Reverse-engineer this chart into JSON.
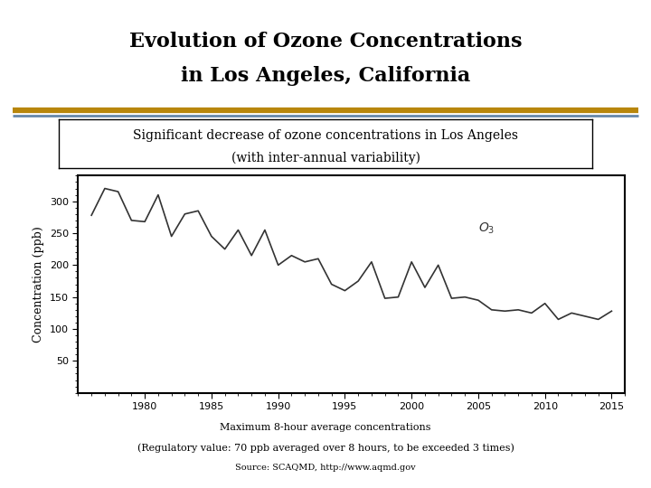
{
  "title_line1": "Evolution of Ozone Concentrations",
  "title_line2": "in Los Angeles, California",
  "subtitle_line1": "Significant decrease of ozone concentrations in Los Angeles",
  "subtitle_line2": "(with inter-annual variability)",
  "xlabel": "Maximum 8-hour average concentrations",
  "xlabel2": "(Regulatory value: 70 ppb averaged over 8 hours, to be exceeded 3 times)",
  "source": "Source: SCAQMD, http://www.aqmd.gov",
  "ylabel": "Concentration (ppb)",
  "separator_color_gold": "#B8860B",
  "separator_color_blue": "#6688AA",
  "background_color": "#FFFFFF",
  "years": [
    1976,
    1977,
    1978,
    1979,
    1980,
    1981,
    1982,
    1983,
    1984,
    1985,
    1986,
    1987,
    1988,
    1989,
    1990,
    1991,
    1992,
    1993,
    1994,
    1995,
    1996,
    1997,
    1998,
    1999,
    2000,
    2001,
    2002,
    2003,
    2004,
    2005,
    2006,
    2007,
    2008,
    2009,
    2010,
    2011,
    2012,
    2013,
    2014,
    2015
  ],
  "values": [
    278,
    320,
    315,
    270,
    268,
    310,
    245,
    280,
    285,
    245,
    225,
    255,
    215,
    255,
    200,
    215,
    205,
    210,
    170,
    160,
    175,
    205,
    148,
    150,
    205,
    165,
    200,
    148,
    150,
    145,
    130,
    128,
    130,
    125,
    140,
    115,
    125,
    120,
    115,
    128
  ],
  "xlim": [
    1975,
    2016
  ],
  "ylim": [
    0,
    340
  ],
  "yticks": [
    50,
    100,
    150,
    200,
    250,
    300
  ],
  "xticks": [
    1980,
    1985,
    1990,
    1995,
    2000,
    2005,
    2010,
    2015
  ],
  "line_color": "#333333",
  "line_width": 1.2,
  "title_fontsize": 16,
  "subtitle_fontsize": 10,
  "ylabel_fontsize": 9,
  "tick_fontsize": 8,
  "caption_fontsize": 8,
  "source_fontsize": 7
}
